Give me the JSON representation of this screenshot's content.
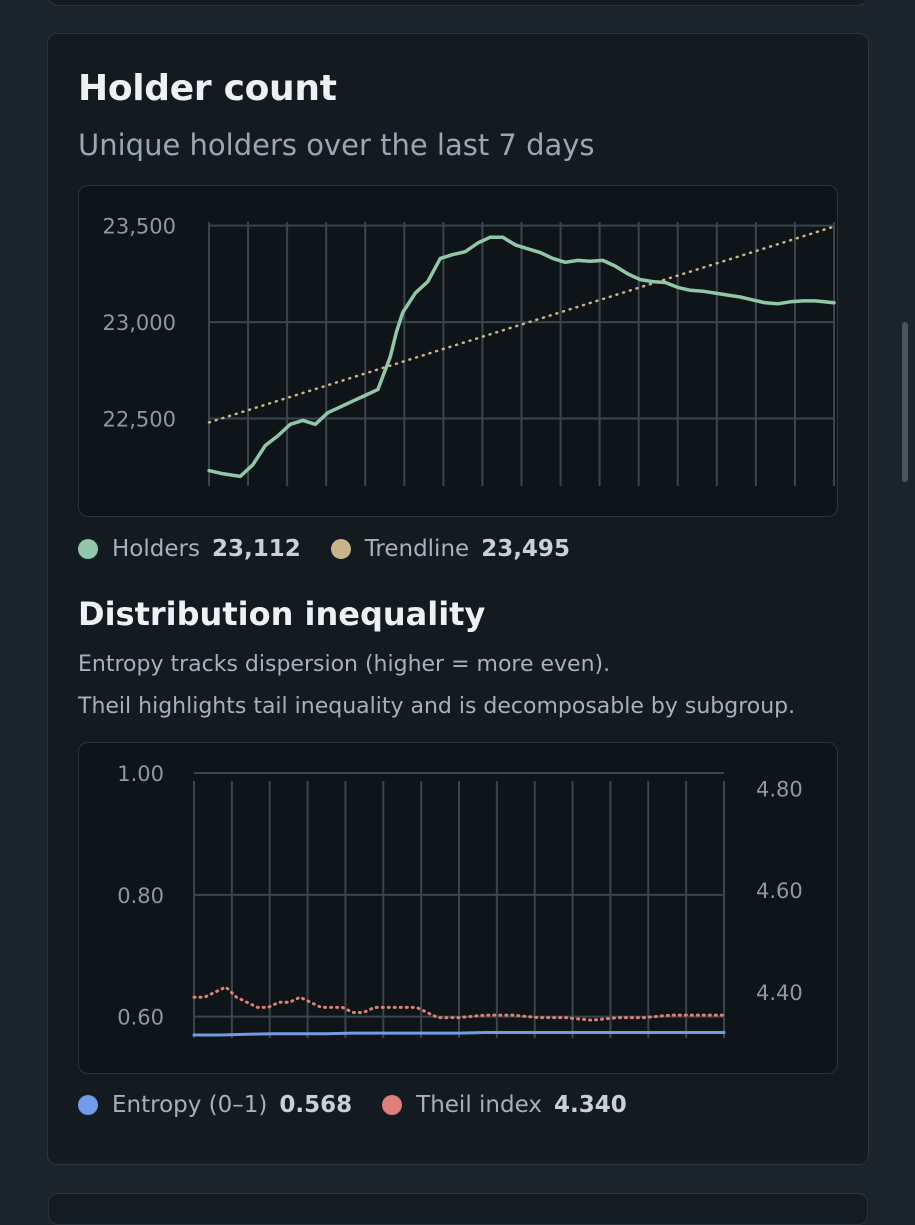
{
  "holder_section": {
    "title": "Holder count",
    "subtitle": "Unique holders over the last 7 days",
    "legend": [
      {
        "label": "Holders",
        "value": "23,112",
        "color": "#8fc7a8"
      },
      {
        "label": "Trendline",
        "value": "23,495",
        "color": "#c8b48a"
      }
    ]
  },
  "distribution_section": {
    "title": "Distribution inequality",
    "desc_line1": "Entropy tracks dispersion (higher = more even).",
    "desc_line2": "Theil highlights tail inequality and is decomposable by subgroup.",
    "legend": [
      {
        "label": "Entropy (0–1)",
        "value": "0.568",
        "color": "#6f9be8"
      },
      {
        "label": "Theil index",
        "value": "4.340",
        "color": "#e07f7a"
      }
    ]
  },
  "chart_data": [
    {
      "type": "line",
      "ylim": [
        22150,
        23550
      ],
      "yticks": [
        "23,500",
        "23,000",
        "22,500"
      ],
      "ytick_values": [
        23500,
        23000,
        22500
      ],
      "series": [
        {
          "name": "Holders",
          "color": "#8fc7a8",
          "style": "solid",
          "x": [
            0,
            0.02,
            0.05,
            0.07,
            0.09,
            0.11,
            0.13,
            0.15,
            0.17,
            0.19,
            0.21,
            0.23,
            0.25,
            0.27,
            0.29,
            0.3,
            0.31,
            0.33,
            0.35,
            0.37,
            0.39,
            0.41,
            0.43,
            0.45,
            0.47,
            0.49,
            0.51,
            0.53,
            0.55,
            0.57,
            0.59,
            0.61,
            0.63,
            0.65,
            0.67,
            0.69,
            0.71,
            0.73,
            0.75,
            0.77,
            0.79,
            0.81,
            0.83,
            0.85,
            0.87,
            0.89,
            0.91,
            0.93,
            0.95,
            0.97,
            1.0
          ],
          "values": [
            22230,
            22215,
            22200,
            22260,
            22360,
            22410,
            22470,
            22490,
            22470,
            22530,
            22560,
            22590,
            22620,
            22650,
            22820,
            22950,
            23050,
            23150,
            23210,
            23330,
            23350,
            23365,
            23410,
            23440,
            23440,
            23400,
            23380,
            23360,
            23330,
            23310,
            23320,
            23315,
            23320,
            23290,
            23250,
            23220,
            23210,
            23205,
            23180,
            23165,
            23160,
            23150,
            23140,
            23130,
            23115,
            23100,
            23095,
            23105,
            23110,
            23110,
            23100
          ]
        },
        {
          "name": "Trendline",
          "color": "#c8b48a",
          "style": "dotted",
          "x": [
            0,
            1
          ],
          "values": [
            22480,
            23495
          ]
        }
      ]
    },
    {
      "type": "line",
      "ylim_left": [
        0.565,
        1.0
      ],
      "ylim_right": [
        4.31,
        4.83
      ],
      "yticks_left": [
        "1.00",
        "0.80",
        "0.60"
      ],
      "ytick_values_left": [
        1.0,
        0.8,
        0.6
      ],
      "yticks_right": [
        "4.80",
        "4.60",
        "4.40"
      ],
      "ytick_values_right": [
        4.8,
        4.6,
        4.4
      ],
      "series": [
        {
          "name": "Entropy (0–1)",
          "color": "#6f9be8",
          "style": "solid",
          "axis": "left",
          "x": [
            0,
            0.05,
            0.1,
            0.15,
            0.2,
            0.25,
            0.3,
            0.35,
            0.4,
            0.45,
            0.5,
            0.55,
            0.6,
            0.65,
            0.7,
            0.75,
            0.8,
            0.85,
            0.9,
            0.95,
            1.0
          ],
          "values": [
            0.57,
            0.57,
            0.571,
            0.572,
            0.572,
            0.572,
            0.573,
            0.573,
            0.573,
            0.573,
            0.573,
            0.574,
            0.574,
            0.574,
            0.574,
            0.574,
            0.574,
            0.574,
            0.574,
            0.574,
            0.574
          ]
        },
        {
          "name": "Theil index",
          "color": "#e07f7a",
          "style": "dotted",
          "axis": "right",
          "x": [
            0,
            0.02,
            0.04,
            0.06,
            0.08,
            0.1,
            0.12,
            0.14,
            0.16,
            0.18,
            0.2,
            0.22,
            0.24,
            0.26,
            0.28,
            0.3,
            0.32,
            0.34,
            0.36,
            0.38,
            0.4,
            0.42,
            0.44,
            0.46,
            0.5,
            0.55,
            0.6,
            0.65,
            0.7,
            0.75,
            0.8,
            0.85,
            0.9,
            0.95,
            1.0
          ],
          "values": [
            4.39,
            4.39,
            4.4,
            4.41,
            4.39,
            4.38,
            4.37,
            4.37,
            4.38,
            4.38,
            4.39,
            4.38,
            4.37,
            4.37,
            4.37,
            4.36,
            4.36,
            4.37,
            4.37,
            4.37,
            4.37,
            4.37,
            4.36,
            4.35,
            4.35,
            4.355,
            4.355,
            4.35,
            4.35,
            4.345,
            4.35,
            4.35,
            4.355,
            4.355,
            4.355
          ]
        }
      ]
    }
  ]
}
